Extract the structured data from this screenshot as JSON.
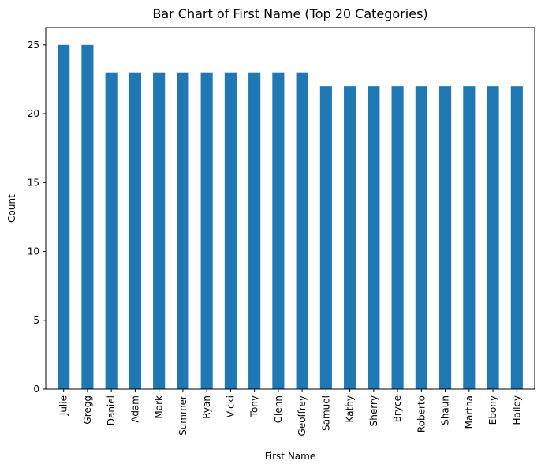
{
  "chart_data": {
    "type": "bar",
    "title": "Bar Chart of First Name (Top 20 Categories)",
    "xlabel": "First Name",
    "ylabel": "Count",
    "categories": [
      "Julie",
      "Gregg",
      "Daniel",
      "Adam",
      "Mark",
      "Summer",
      "Ryan",
      "Vicki",
      "Tony",
      "Glenn",
      "Geoffrey",
      "Samuel",
      "Kathy",
      "Sherry",
      "Bryce",
      "Roberto",
      "Shaun",
      "Martha",
      "Ebony",
      "Hailey"
    ],
    "values": [
      25,
      25,
      23,
      23,
      23,
      23,
      23,
      23,
      23,
      23,
      23,
      22,
      22,
      22,
      22,
      22,
      22,
      22,
      22,
      22
    ],
    "ylim": [
      0,
      26.25
    ],
    "yticks": [
      0,
      5,
      10,
      15,
      20,
      25
    ],
    "grid": false,
    "legend": "none",
    "colors": {
      "bar": "#1f77b4",
      "axis": "#000000",
      "background": "#ffffff"
    }
  }
}
